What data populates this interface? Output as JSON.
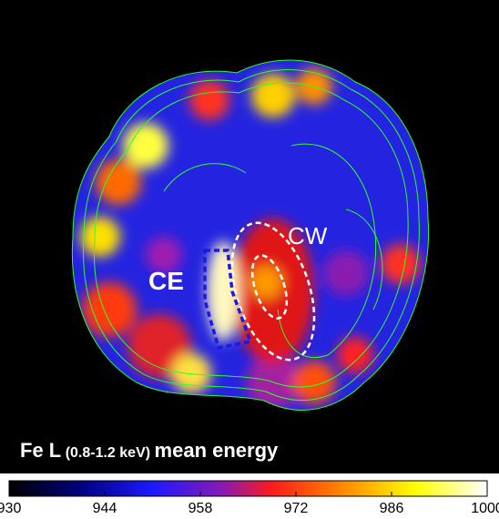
{
  "image": {
    "labels": {
      "ce": "CE",
      "cw": "CW"
    },
    "caption": {
      "element": "Fe L",
      "band": "(0.8-1.2 keV)",
      "quantity": "mean energy"
    }
  },
  "colorbar": {
    "lim": [
      930,
      1000
    ],
    "ticks": [
      930,
      944,
      958,
      972,
      986,
      1000
    ]
  }
}
